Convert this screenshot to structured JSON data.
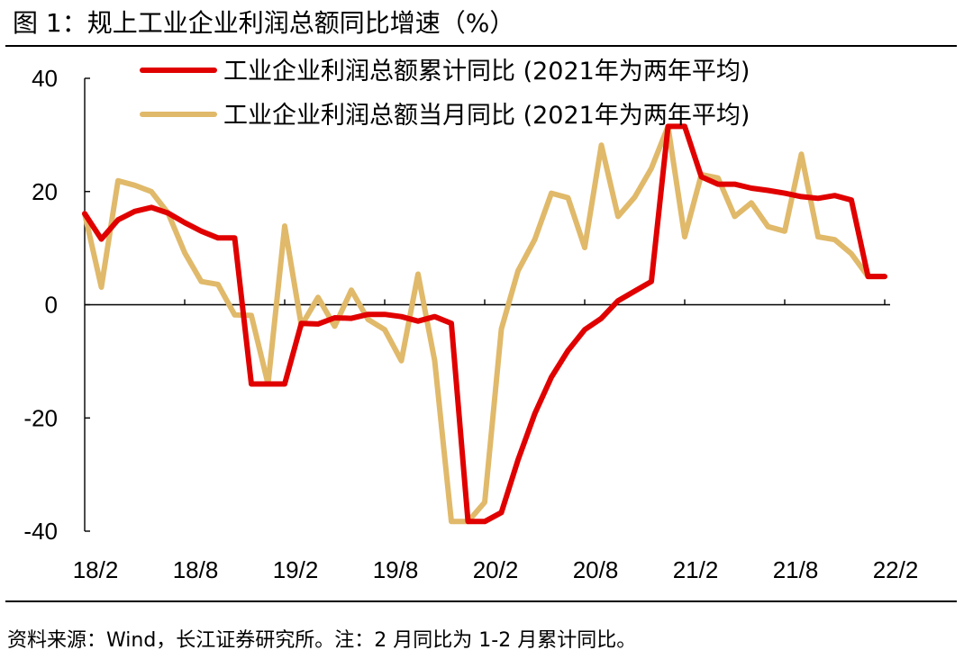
{
  "figure": {
    "title": "图  1：规上工业企业利润总额同比增速（%）",
    "source": "资料来源：Wind，长江证券研究所。注：2 月同比为 1-2 月累计同比。"
  },
  "chart_data": {
    "type": "line",
    "title": "规上工业企业利润总额同比增速（%）",
    "xlabel": "",
    "ylabel": "%",
    "ylim": [
      -40,
      40
    ],
    "yticks": [
      -40,
      -20,
      0,
      20,
      40
    ],
    "ytick_labels": [
      "-40",
      "-20",
      "0",
      "20",
      "40"
    ],
    "x_tick_labels": [
      "18/2",
      "18/8",
      "19/2",
      "19/8",
      "20/2",
      "20/8",
      "21/2",
      "21/8",
      "22/2"
    ],
    "x_tick_index": [
      0,
      6,
      12,
      18,
      24,
      30,
      36,
      42,
      48
    ],
    "categories": [
      "18/2",
      "18/3",
      "18/4",
      "18/5",
      "18/6",
      "18/7",
      "18/8",
      "18/9",
      "18/10",
      "18/11",
      "18/12",
      "19/1",
      "19/2",
      "19/3",
      "19/4",
      "19/5",
      "19/6",
      "19/7",
      "19/8",
      "19/9",
      "19/10",
      "19/11",
      "19/12",
      "20/1",
      "20/2",
      "20/3",
      "20/4",
      "20/5",
      "20/6",
      "20/7",
      "20/8",
      "20/9",
      "20/10",
      "20/11",
      "20/12",
      "21/1",
      "21/2",
      "21/3",
      "21/4",
      "21/5",
      "21/6",
      "21/7",
      "21/8",
      "21/9",
      "21/10",
      "21/11",
      "21/12",
      "22/1",
      "22/2"
    ],
    "legend_position": "top-right",
    "grid": false,
    "series": [
      {
        "name": "工业企业利润总额累计同比 (2021年为两年平均)",
        "color": "#e00000",
        "values": [
          16.1,
          11.6,
          15.0,
          16.5,
          17.2,
          16.2,
          14.5,
          13.0,
          11.8,
          11.8,
          -14.0,
          -14.0,
          -14.0,
          -3.3,
          -3.4,
          -2.3,
          -2.4,
          -1.7,
          -1.7,
          -2.1,
          -2.9,
          -2.1,
          -3.3,
          -38.3,
          -38.3,
          -36.7,
          -27.4,
          -19.3,
          -12.8,
          -8.1,
          -4.4,
          -2.4,
          0.7,
          2.4,
          4.1,
          31.5,
          31.5,
          22.6,
          21.3,
          21.3,
          20.6,
          20.2,
          19.7,
          19.1,
          18.8,
          19.3,
          18.5,
          5.0,
          5.0
        ]
      },
      {
        "name": "工业企业利润总额当月同比 (2021年为两年平均)",
        "color": "#e0b96a",
        "values": [
          16.1,
          3.1,
          21.9,
          21.1,
          20.0,
          16.2,
          9.2,
          4.1,
          3.6,
          -1.8,
          -1.9,
          -14.0,
          13.9,
          -3.7,
          1.3,
          -3.8,
          2.6,
          -2.6,
          -4.4,
          -9.9,
          5.4,
          -9.9,
          -38.3,
          -38.3,
          -34.9,
          -4.3,
          6.0,
          11.5,
          19.7,
          18.9,
          10.1,
          28.2,
          15.6,
          19.0,
          24.1,
          31.5,
          12.0,
          23.0,
          22.4,
          15.6,
          18.0,
          13.8,
          13.0,
          26.6,
          12.0,
          11.5,
          9.0,
          5.0,
          5.0
        ]
      }
    ]
  }
}
